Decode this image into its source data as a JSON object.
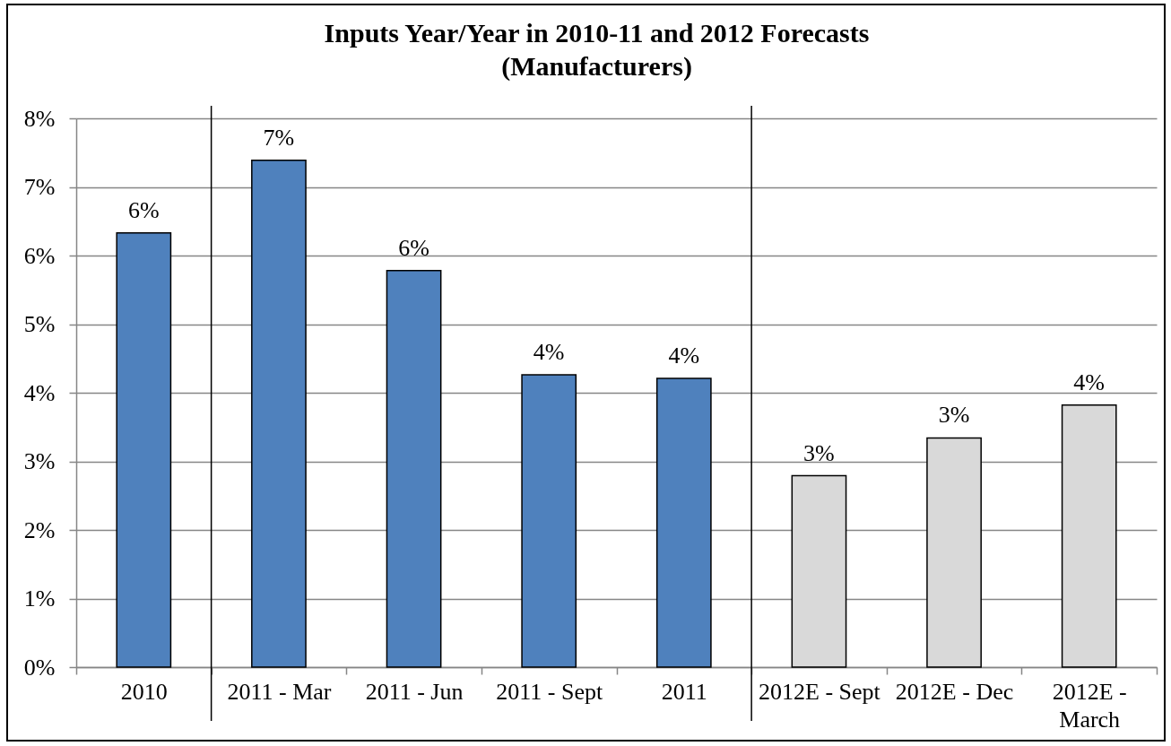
{
  "chart_data": {
    "type": "bar",
    "title": "Inputs Year/Year in 2010-11 and 2012 Forecasts\n(Manufacturers)",
    "categories": [
      "2010",
      "2011 - Mar",
      "2011 - Jun",
      "2011 - Sept",
      "2011",
      "2012E - Sept",
      "2012E - Dec",
      "2012E - March"
    ],
    "values": [
      6.33,
      7.39,
      5.78,
      4.26,
      4.21,
      2.79,
      3.34,
      3.82
    ],
    "colors": [
      "#4f81bd",
      "#4f81bd",
      "#4f81bd",
      "#4f81bd",
      "#4f81bd",
      "#d9d9d9",
      "#d9d9d9",
      "#d9d9d9"
    ],
    "value_labels": [
      "6%",
      "7%",
      "6%",
      "4%",
      "4%",
      "3%",
      "3%",
      "4%"
    ],
    "ylim": [
      0,
      8
    ],
    "yticks": [
      {
        "value": 0,
        "label": "0%"
      },
      {
        "value": 1,
        "label": "1%"
      },
      {
        "value": 2,
        "label": "2%"
      },
      {
        "value": 3,
        "label": "3%"
      },
      {
        "value": 4,
        "label": "4%"
      },
      {
        "value": 5,
        "label": "5%"
      },
      {
        "value": 6,
        "label": "6%"
      },
      {
        "value": 7,
        "label": "7%"
      },
      {
        "value": 8,
        "label": "8%"
      }
    ],
    "grid": "y"
  }
}
